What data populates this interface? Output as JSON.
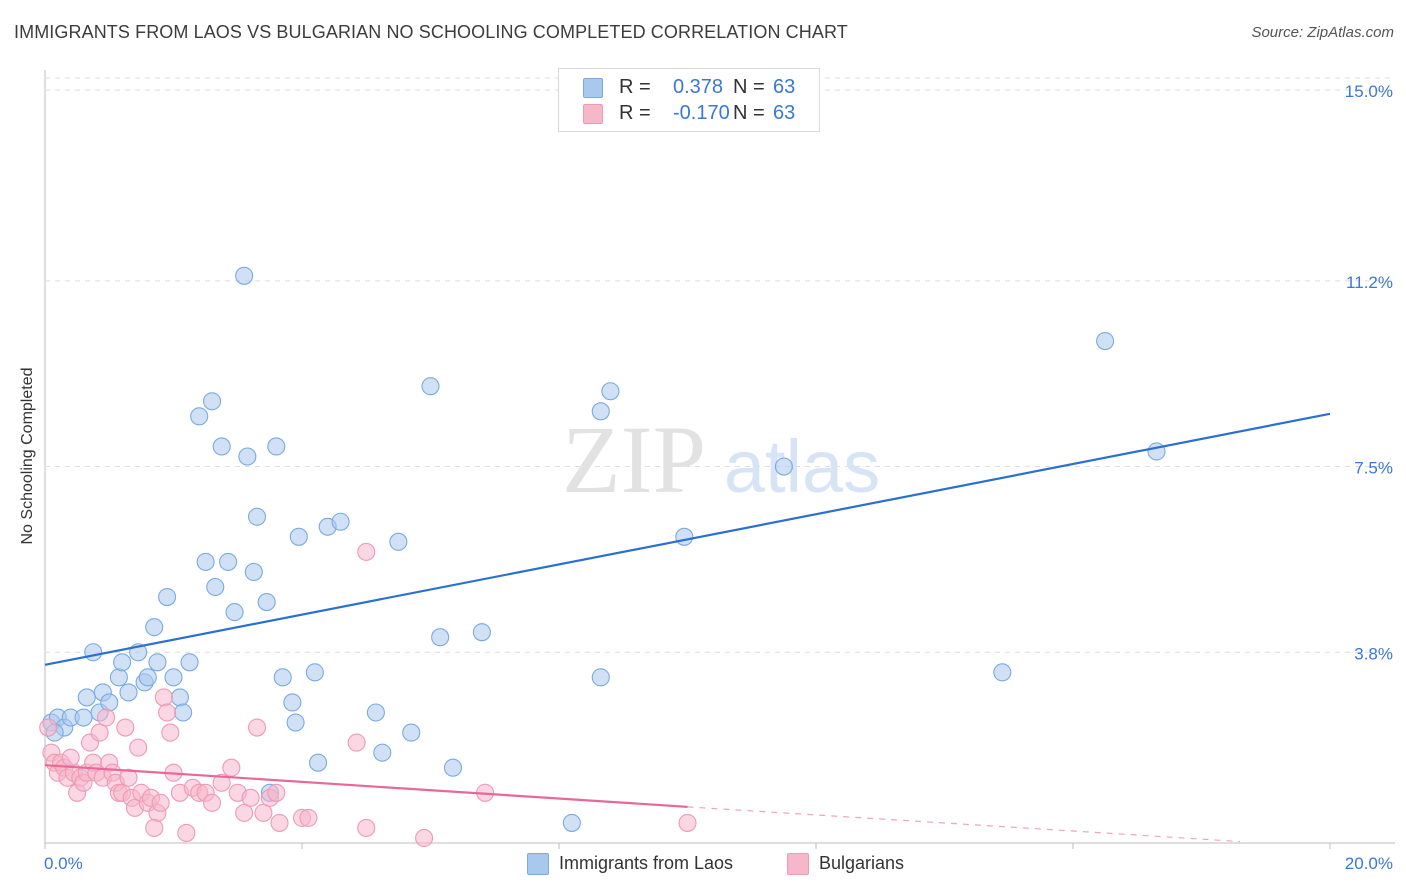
{
  "title": "IMMIGRANTS FROM LAOS VS BULGARIAN NO SCHOOLING COMPLETED CORRELATION CHART",
  "source": "Source: ZipAtlas.com",
  "watermark": {
    "zip": "ZIP",
    "atlas": "atlas"
  },
  "colors": {
    "blue_fill": "#a9c8ee",
    "blue_stroke": "#7aaae0",
    "blue_line": "#2b70d0",
    "pink_fill": "#f6b7cb",
    "pink_stroke": "#ee9ab5",
    "pink_line": "#e8689a",
    "tick_label": "#3a78d4",
    "grid": "#dedede"
  },
  "stats": {
    "blue": {
      "r_label": "R =",
      "r_value": "0.378",
      "n_label": "N =",
      "n_value": "63"
    },
    "pink": {
      "r_label": "R =",
      "r_value": "-0.170",
      "n_label": "N =",
      "n_value": "63"
    }
  },
  "legend": {
    "blue": "Immigrants from Laos",
    "pink": "Bulgarians"
  },
  "chart_data": {
    "type": "scatter",
    "xlabel": "",
    "ylabel": "No Schooling Completed",
    "xlim": [
      0,
      20
    ],
    "ylim": [
      0,
      15.4
    ],
    "x_tick_labels": [
      {
        "value": 0,
        "label": "0.0%"
      },
      {
        "value": 20,
        "label": "20.0%"
      }
    ],
    "y_tick_labels": [
      {
        "value": 3.8,
        "label": "3.8%"
      },
      {
        "value": 7.5,
        "label": "7.5%"
      },
      {
        "value": 11.2,
        "label": "11.2%"
      },
      {
        "value": 15.0,
        "label": "15.0%"
      }
    ],
    "series": [
      {
        "name": "Immigrants from Laos",
        "color": "#a9c8ee",
        "trendline": {
          "x": [
            0,
            20
          ],
          "y": [
            3.55,
            8.55
          ],
          "style": "solid"
        },
        "points": [
          [
            0.1,
            2.4
          ],
          [
            0.2,
            2.5
          ],
          [
            0.3,
            2.3
          ],
          [
            0.4,
            2.5
          ],
          [
            0.6,
            2.5
          ],
          [
            0.65,
            2.9
          ],
          [
            0.75,
            3.8
          ],
          [
            0.85,
            2.6
          ],
          [
            0.9,
            3.0
          ],
          [
            1.0,
            2.8
          ],
          [
            1.15,
            3.3
          ],
          [
            1.2,
            3.6
          ],
          [
            1.3,
            3.0
          ],
          [
            1.45,
            3.8
          ],
          [
            1.55,
            3.2
          ],
          [
            1.6,
            3.3
          ],
          [
            1.7,
            4.3
          ],
          [
            1.75,
            3.6
          ],
          [
            1.9,
            4.9
          ],
          [
            2.0,
            3.3
          ],
          [
            2.1,
            2.9
          ],
          [
            2.15,
            2.6
          ],
          [
            2.25,
            3.6
          ],
          [
            2.4,
            8.5
          ],
          [
            2.5,
            5.6
          ],
          [
            2.6,
            8.8
          ],
          [
            2.65,
            5.1
          ],
          [
            2.75,
            7.9
          ],
          [
            2.85,
            5.6
          ],
          [
            2.95,
            4.6
          ],
          [
            3.1,
            11.3
          ],
          [
            3.15,
            7.7
          ],
          [
            3.25,
            5.4
          ],
          [
            3.3,
            6.5
          ],
          [
            3.45,
            4.8
          ],
          [
            3.5,
            1.0
          ],
          [
            3.6,
            7.9
          ],
          [
            3.7,
            3.3
          ],
          [
            3.85,
            2.8
          ],
          [
            3.9,
            2.4
          ],
          [
            3.95,
            6.1
          ],
          [
            4.2,
            3.4
          ],
          [
            4.25,
            1.6
          ],
          [
            4.4,
            6.3
          ],
          [
            4.6,
            6.4
          ],
          [
            5.15,
            2.6
          ],
          [
            5.25,
            1.8
          ],
          [
            5.5,
            6.0
          ],
          [
            5.7,
            2.2
          ],
          [
            6.0,
            9.1
          ],
          [
            6.15,
            4.1
          ],
          [
            6.35,
            1.5
          ],
          [
            6.8,
            4.2
          ],
          [
            8.2,
            0.4
          ],
          [
            8.65,
            3.3
          ],
          [
            8.65,
            8.6
          ],
          [
            8.8,
            9.0
          ],
          [
            9.95,
            6.1
          ],
          [
            11.5,
            7.5
          ],
          [
            14.9,
            3.4
          ],
          [
            16.5,
            10.0
          ],
          [
            17.3,
            7.8
          ],
          [
            0.15,
            2.2
          ]
        ]
      },
      {
        "name": "Bulgarians",
        "color": "#f6b7cb",
        "trendline": {
          "x": [
            0,
            10
          ],
          "y": [
            1.55,
            0.72
          ],
          "style": "solid",
          "dashed_extension": {
            "x": [
              10,
              20
            ],
            "y": [
              0.72,
              -0.11
            ]
          }
        },
        "points": [
          [
            0.05,
            2.3
          ],
          [
            0.1,
            1.8
          ],
          [
            0.15,
            1.6
          ],
          [
            0.2,
            1.4
          ],
          [
            0.25,
            1.6
          ],
          [
            0.3,
            1.5
          ],
          [
            0.35,
            1.3
          ],
          [
            0.45,
            1.4
          ],
          [
            0.5,
            1.0
          ],
          [
            0.55,
            1.3
          ],
          [
            0.6,
            1.2
          ],
          [
            0.65,
            1.4
          ],
          [
            0.7,
            2.0
          ],
          [
            0.75,
            1.6
          ],
          [
            0.8,
            1.4
          ],
          [
            0.85,
            2.2
          ],
          [
            0.9,
            1.3
          ],
          [
            0.95,
            2.5
          ],
          [
            1.0,
            1.6
          ],
          [
            1.05,
            1.4
          ],
          [
            1.1,
            1.2
          ],
          [
            1.15,
            1.0
          ],
          [
            1.2,
            1.0
          ],
          [
            1.25,
            2.3
          ],
          [
            1.3,
            1.3
          ],
          [
            1.35,
            0.9
          ],
          [
            1.4,
            0.7
          ],
          [
            1.45,
            1.9
          ],
          [
            1.5,
            1.0
          ],
          [
            1.6,
            0.8
          ],
          [
            1.65,
            0.9
          ],
          [
            1.75,
            0.6
          ],
          [
            1.8,
            0.8
          ],
          [
            1.85,
            2.9
          ],
          [
            1.9,
            2.6
          ],
          [
            1.95,
            2.2
          ],
          [
            2.0,
            1.4
          ],
          [
            2.1,
            1.0
          ],
          [
            2.2,
            0.2
          ],
          [
            2.3,
            1.1
          ],
          [
            2.4,
            1.0
          ],
          [
            2.5,
            1.0
          ],
          [
            2.6,
            0.8
          ],
          [
            2.75,
            1.2
          ],
          [
            2.9,
            1.5
          ],
          [
            3.0,
            1.0
          ],
          [
            3.1,
            0.6
          ],
          [
            3.2,
            0.9
          ],
          [
            3.3,
            2.3
          ],
          [
            3.4,
            0.6
          ],
          [
            3.5,
            0.9
          ],
          [
            3.6,
            1.0
          ],
          [
            4.0,
            0.5
          ],
          [
            4.1,
            0.5
          ],
          [
            4.85,
            2.0
          ],
          [
            5.0,
            0.3
          ],
          [
            5.0,
            5.8
          ],
          [
            5.9,
            0.1
          ],
          [
            6.85,
            1.0
          ],
          [
            10.0,
            0.4
          ],
          [
            1.7,
            0.3
          ],
          [
            3.65,
            0.4
          ],
          [
            0.4,
            1.7
          ]
        ]
      }
    ]
  }
}
